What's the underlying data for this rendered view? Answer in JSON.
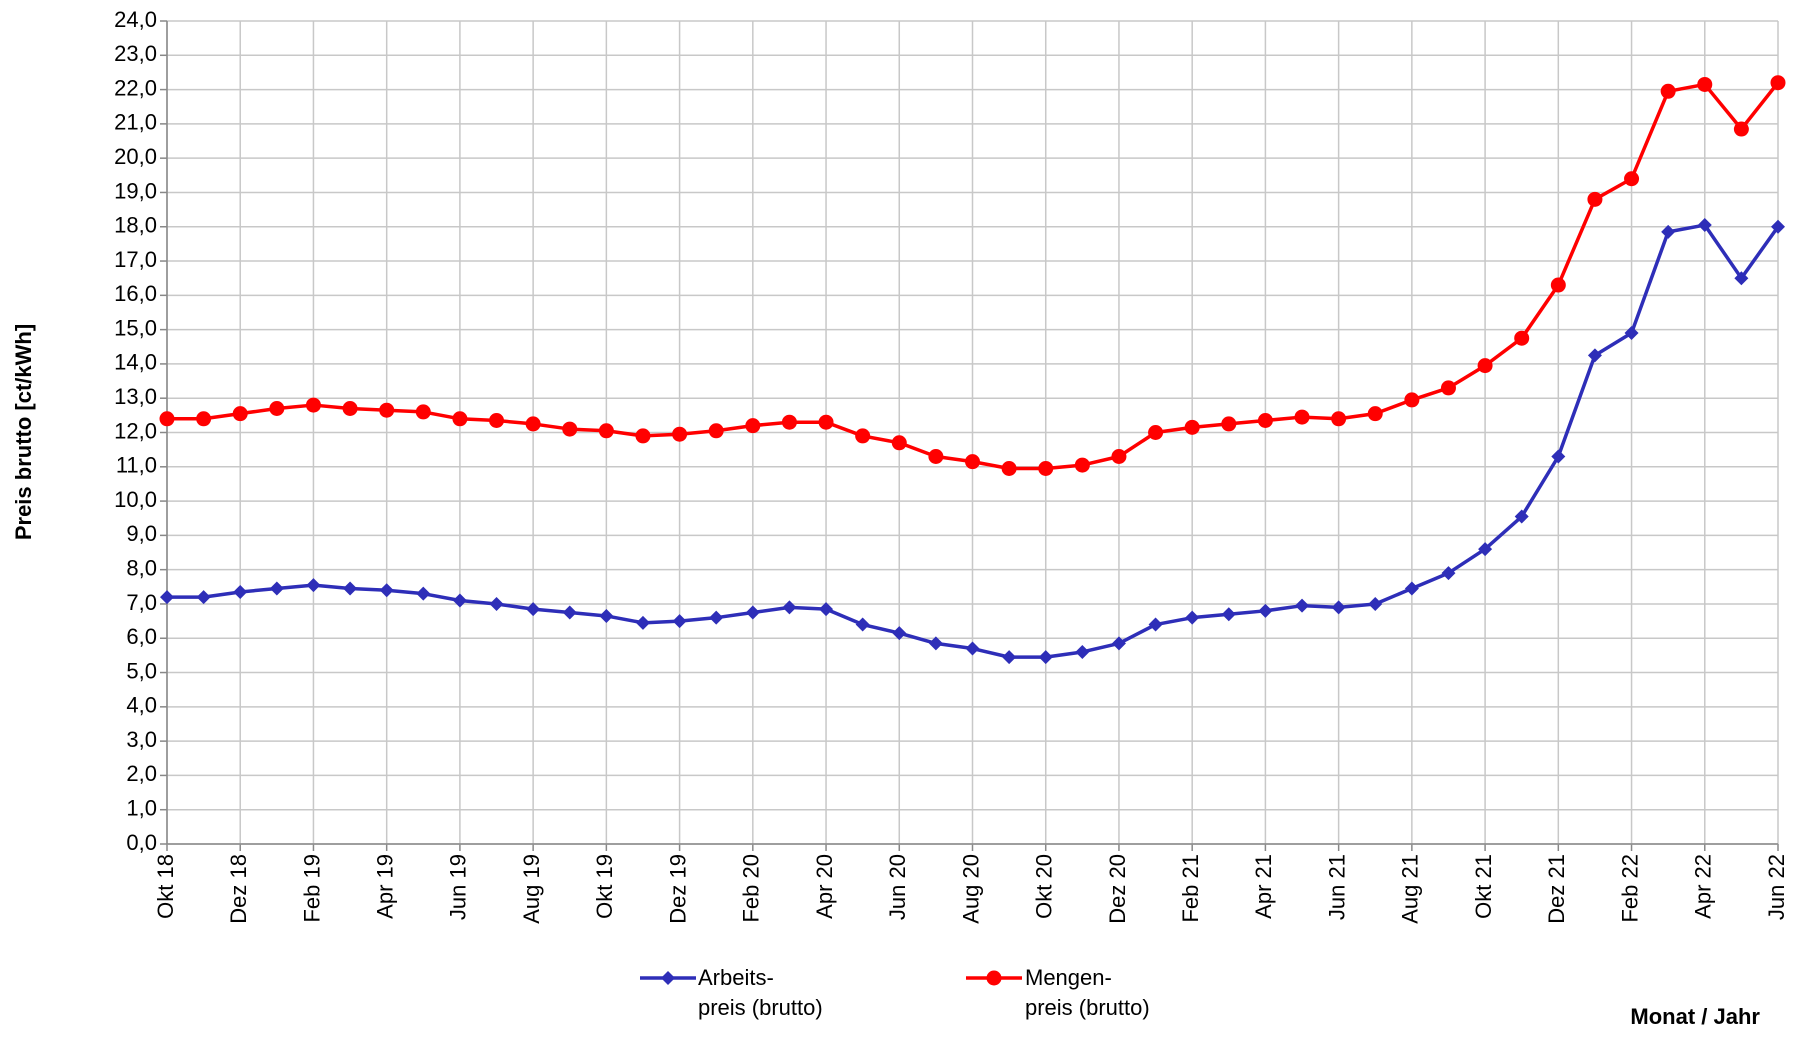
{
  "chart_data": {
    "type": "line",
    "y_label": "Preis brutto [ct/kWh]",
    "x_label": "Monat / Jahr",
    "categories": [
      "Okt 18",
      null,
      "Dez 18",
      null,
      "Feb 19",
      null,
      "Apr 19",
      null,
      "Jun 19",
      null,
      "Aug 19",
      null,
      "Okt 19",
      null,
      "Dez 19",
      null,
      "Feb 20",
      null,
      "Apr 20",
      null,
      "Jun 20",
      null,
      "Aug 20",
      null,
      "Okt 20",
      null,
      "Dez 20",
      null,
      "Feb 21",
      null,
      "Apr 21",
      null,
      "Jun 21",
      null,
      "Aug 21",
      null,
      "Okt 21",
      null,
      "Dez 21",
      null,
      "Feb 22",
      null,
      "Apr 22",
      null,
      "Jun 22"
    ],
    "series": [
      {
        "name": "Arbeits-\npreis (brutto)",
        "color": "#2e2eb8",
        "marker": "diamond",
        "values": [
          7.2,
          7.2,
          7.35,
          7.45,
          7.55,
          7.45,
          7.4,
          7.3,
          7.1,
          7.0,
          6.85,
          6.75,
          6.65,
          6.45,
          6.5,
          6.6,
          6.75,
          6.9,
          6.85,
          6.4,
          6.15,
          5.85,
          5.7,
          5.45,
          5.45,
          5.6,
          5.85,
          6.4,
          6.6,
          6.7,
          6.8,
          6.95,
          6.9,
          7.0,
          7.45,
          7.9,
          8.6,
          9.55,
          11.3,
          14.25,
          14.9,
          17.85,
          18.05,
          16.5,
          18.0
        ]
      },
      {
        "name": "Mengen-\npreis (brutto)",
        "color": "#ff0000",
        "marker": "circle",
        "values": [
          12.4,
          12.4,
          12.55,
          12.7,
          12.8,
          12.7,
          12.65,
          12.6,
          12.4,
          12.35,
          12.25,
          12.1,
          12.05,
          11.9,
          11.95,
          12.05,
          12.2,
          12.3,
          12.3,
          11.9,
          11.7,
          11.3,
          11.15,
          10.95,
          10.95,
          11.05,
          11.3,
          12.0,
          12.15,
          12.25,
          12.35,
          12.45,
          12.4,
          12.55,
          12.95,
          13.3,
          13.95,
          14.75,
          16.3,
          18.8,
          19.4,
          21.95,
          22.15,
          20.85,
          22.2
        ]
      }
    ],
    "ylim": [
      0,
      24
    ],
    "yticks": [
      {
        "value": 0,
        "label": "0,0"
      },
      {
        "value": 1,
        "label": "1,0"
      },
      {
        "value": 2,
        "label": "2,0"
      },
      {
        "value": 3,
        "label": "3,0"
      },
      {
        "value": 4,
        "label": "4,0"
      },
      {
        "value": 5,
        "label": "5,0"
      },
      {
        "value": 6,
        "label": "6,0"
      },
      {
        "value": 7,
        "label": "7,0"
      },
      {
        "value": 8,
        "label": "8,0"
      },
      {
        "value": 9,
        "label": "9,0"
      },
      {
        "value": 10,
        "label": "10,0"
      },
      {
        "value": 11,
        "label": "11,0"
      },
      {
        "value": 12,
        "label": "12,0"
      },
      {
        "value": 13,
        "label": "13,0"
      },
      {
        "value": 14,
        "label": "14,0"
      },
      {
        "value": 15,
        "label": "15,0"
      },
      {
        "value": 16,
        "label": "16,0"
      },
      {
        "value": 17,
        "label": "17,0"
      },
      {
        "value": 18,
        "label": "18,0"
      },
      {
        "value": 19,
        "label": "19,0"
      },
      {
        "value": 20,
        "label": "20,0"
      },
      {
        "value": 21,
        "label": "21,0"
      },
      {
        "value": 22,
        "label": "22,0"
      },
      {
        "value": 23,
        "label": "23,0"
      },
      {
        "value": 24,
        "label": "24,0"
      }
    ],
    "grid": true
  }
}
